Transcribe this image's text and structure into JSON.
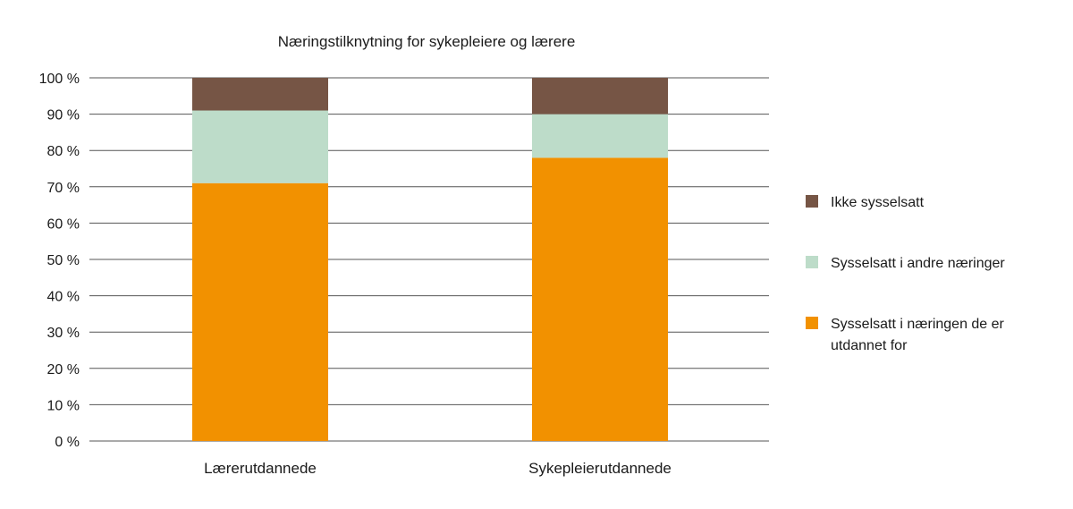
{
  "chart_data": {
    "type": "bar",
    "stacked": true,
    "title": "Næringstilknytning for sykepleiere og lærere",
    "categories": [
      "Lærerutdannede",
      "Sykepleierutdannede"
    ],
    "series": [
      {
        "name": "Sysselsatt i næringen de er utdannet for",
        "values": [
          71,
          78
        ],
        "color": "#f29100"
      },
      {
        "name": "Sysselsatt i andre næringer",
        "values": [
          20,
          12
        ],
        "color": "#bddcc9"
      },
      {
        "name": "Ikke sysselsatt",
        "values": [
          9,
          10
        ],
        "color": "#765545"
      }
    ],
    "legend_lines": [
      [
        "Ikke sysselsatt"
      ],
      [
        "Sysselsatt i andre næringer"
      ],
      [
        "Sysselsatt i næringen de er",
        "utdannet for"
      ]
    ],
    "legend_position": "right",
    "ylim": [
      0,
      100
    ],
    "yticks": [
      0,
      10,
      20,
      30,
      40,
      50,
      60,
      70,
      80,
      90,
      100
    ],
    "ytick_labels": [
      "0 %",
      "10 %",
      "20 %",
      "30 %",
      "40 %",
      "50 %",
      "60 %",
      "70 %",
      "80 %",
      "90 %",
      "100 %"
    ],
    "grid": true,
    "xlabel": "",
    "ylabel": ""
  }
}
